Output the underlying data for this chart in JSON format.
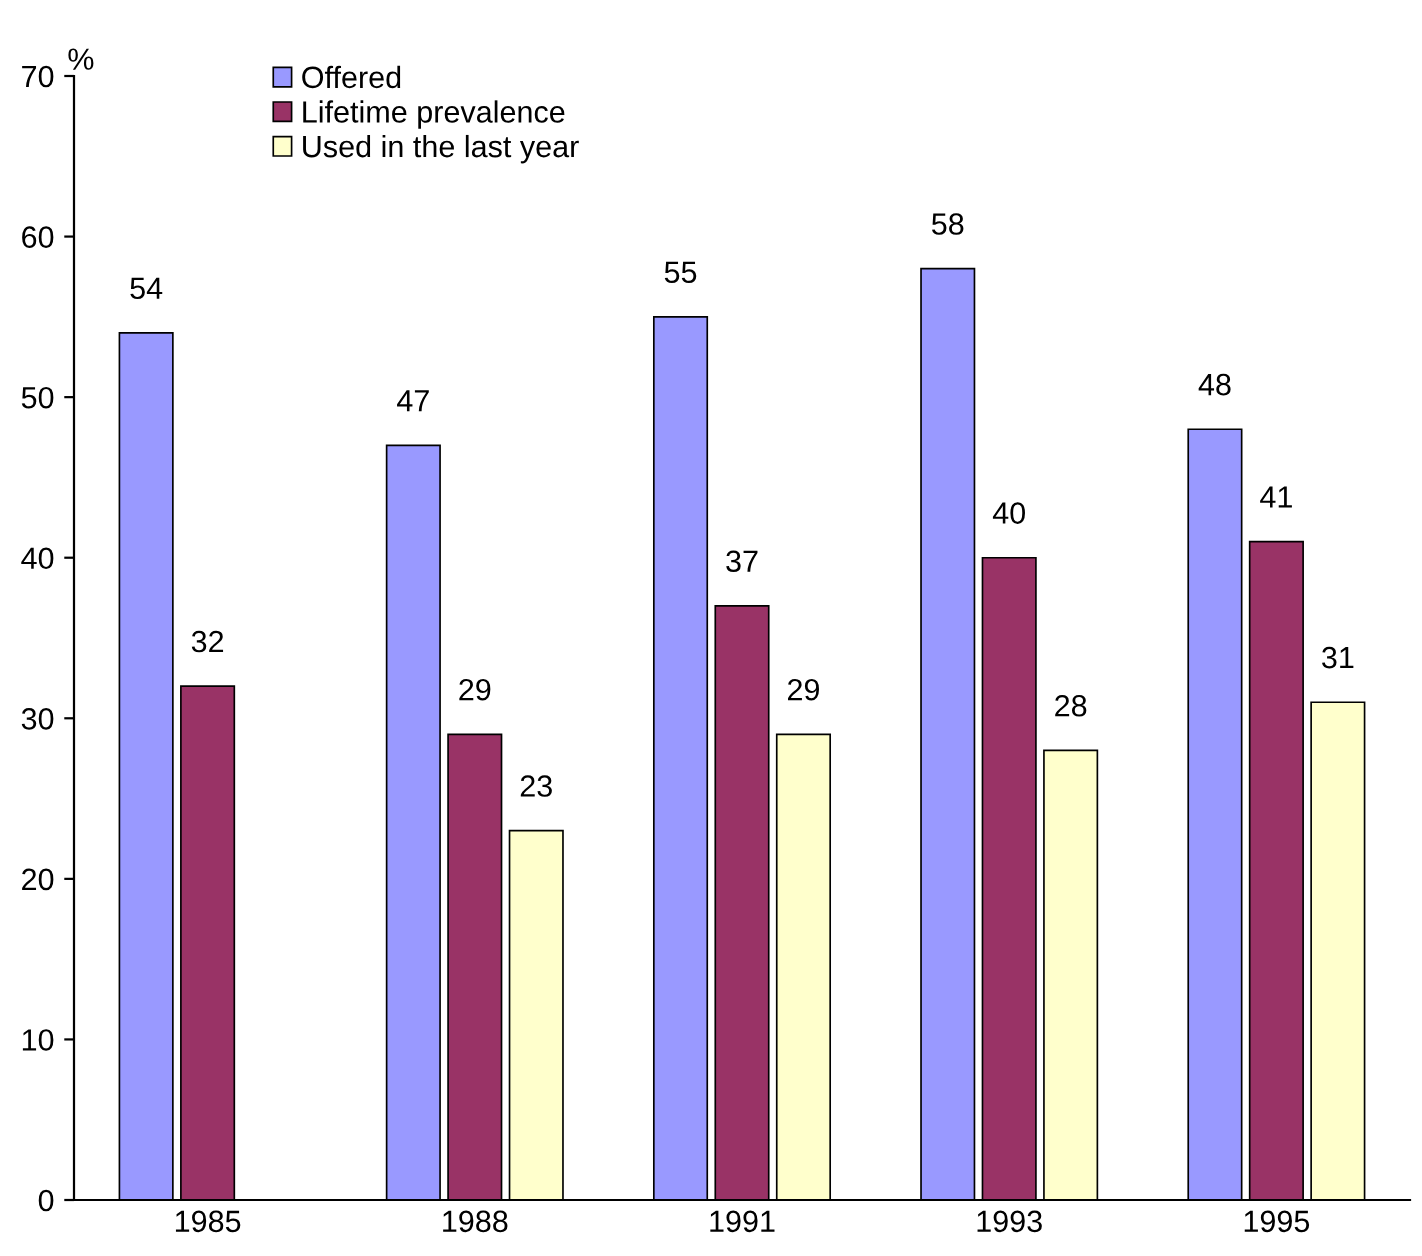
{
  "chart_data": {
    "type": "bar",
    "ylabel": "%",
    "categories": [
      "1985",
      "1988",
      "1991",
      "1993",
      "1995"
    ],
    "series": [
      {
        "name": "Offered",
        "color": "#9999ff",
        "values": [
          54,
          47,
          55,
          58,
          48
        ]
      },
      {
        "name": "Lifetime prevalence",
        "color": "#993366",
        "values": [
          32,
          29,
          37,
          40,
          41
        ]
      },
      {
        "name": "Used in the last year",
        "color": "#ffffcc",
        "values": [
          null,
          23,
          29,
          28,
          31
        ]
      }
    ],
    "ylim": [
      0,
      70
    ],
    "yticks": [
      0,
      10,
      20,
      30,
      40,
      50,
      60,
      70
    ],
    "data_labels": true,
    "legend": "top left",
    "grid": false
  }
}
